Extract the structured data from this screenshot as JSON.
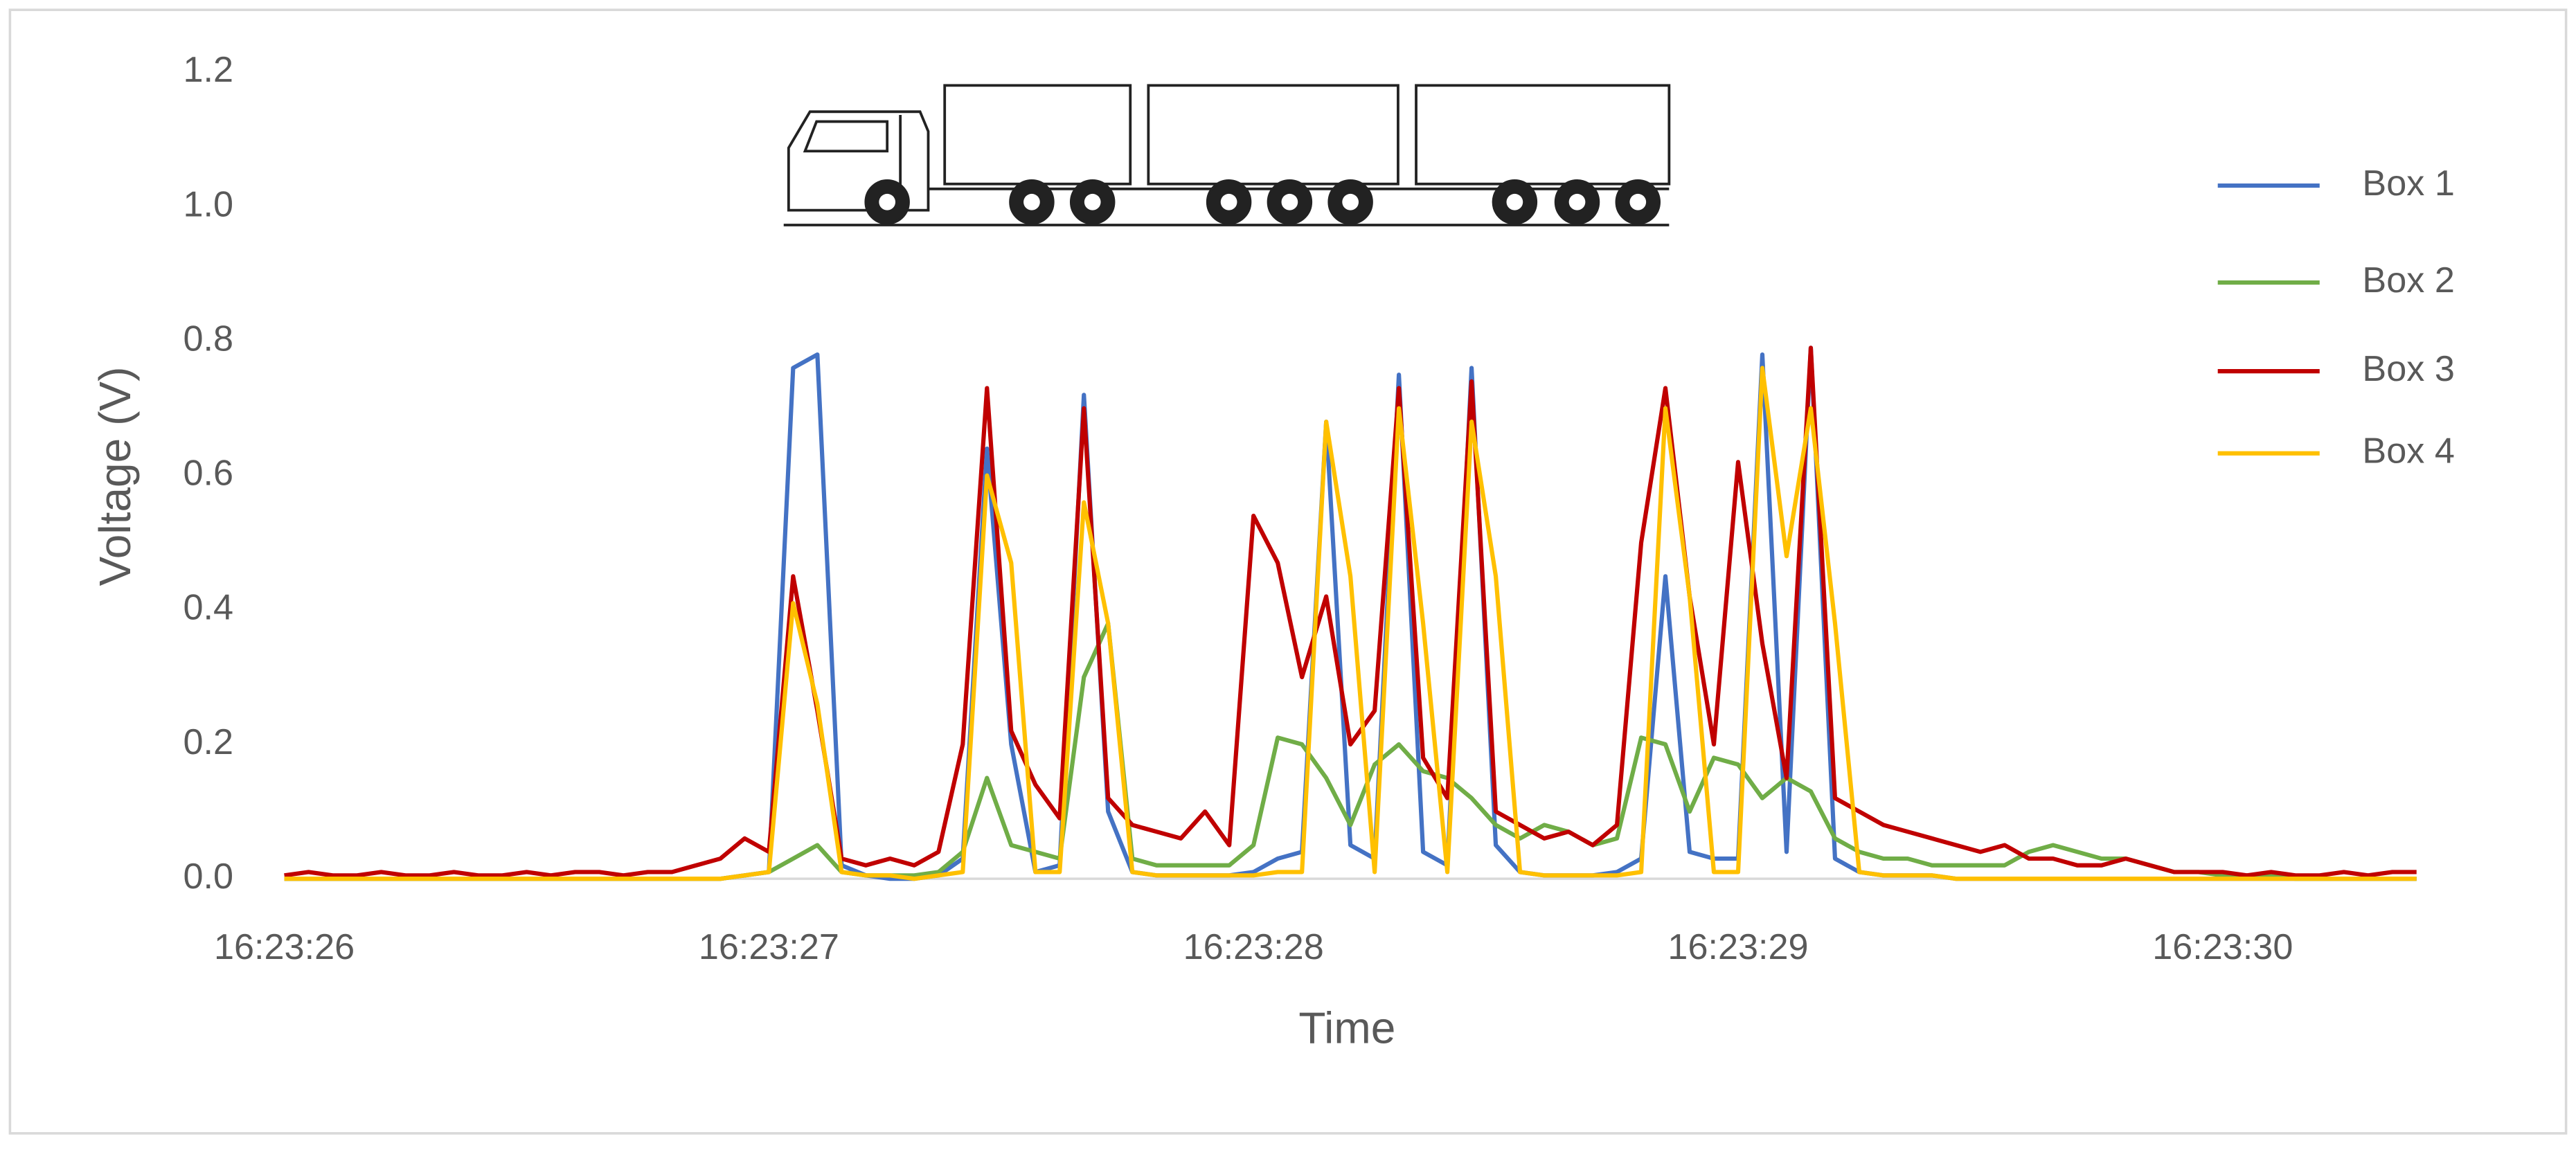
{
  "chart_data": {
    "type": "line",
    "x_label": "Time",
    "y_label": "Voltage (V)",
    "x": [
      59006,
      59006.05,
      59006.1,
      59006.15,
      59006.2,
      59006.25,
      59006.3,
      59006.35,
      59006.4,
      59006.45,
      59006.5,
      59006.55,
      59006.6,
      59006.65,
      59006.7,
      59006.75,
      59006.8,
      59006.85,
      59006.9,
      59006.95,
      59007,
      59007.05,
      59007.1,
      59007.15,
      59007.2,
      59007.25,
      59007.3,
      59007.35,
      59007.4,
      59007.45,
      59007.5,
      59007.55,
      59007.6,
      59007.65,
      59007.7,
      59007.75,
      59007.8,
      59007.85,
      59007.9,
      59007.95,
      59008,
      59008.05,
      59008.1,
      59008.15,
      59008.2,
      59008.25,
      59008.3,
      59008.35,
      59008.4,
      59008.45,
      59008.5,
      59008.55,
      59008.6,
      59008.65,
      59008.7,
      59008.75,
      59008.8,
      59008.85,
      59008.9,
      59008.95,
      59009,
      59009.05,
      59009.1,
      59009.15,
      59009.2,
      59009.25,
      59009.3,
      59009.35,
      59009.4,
      59009.45,
      59009.5,
      59009.55,
      59009.6,
      59009.65,
      59009.7,
      59009.75,
      59009.8,
      59009.85,
      59009.9,
      59009.95,
      59010,
      59010.05,
      59010.1,
      59010.15,
      59010.2,
      59010.25,
      59010.3,
      59010.35,
      59010.4
    ],
    "series": [
      {
        "name": "Box 1",
        "color": "#4472c4",
        "values": [
          0,
          0,
          0,
          0,
          0,
          0,
          0,
          0,
          0,
          0,
          0,
          0,
          0,
          0,
          0,
          0,
          0,
          0,
          0,
          0.005,
          0.01,
          0.76,
          0.78,
          0.02,
          0.005,
          0,
          0,
          0.005,
          0.03,
          0.64,
          0.2,
          0.01,
          0.02,
          0.72,
          0.1,
          0.01,
          0.005,
          0.005,
          0.005,
          0.005,
          0.01,
          0.03,
          0.04,
          0.68,
          0.05,
          0.03,
          0.75,
          0.04,
          0.02,
          0.76,
          0.05,
          0.01,
          0.005,
          0.005,
          0.005,
          0.01,
          0.03,
          0.45,
          0.04,
          0.03,
          0.03,
          0.78,
          0.04,
          0.79,
          0.03,
          0.01,
          0.005,
          0.005,
          0.005,
          0,
          0,
          0,
          0,
          0,
          0,
          0,
          0,
          0,
          0,
          0,
          0,
          0,
          0,
          0,
          0,
          0,
          0,
          0,
          0
        ]
      },
      {
        "name": "Box 2",
        "color": "#70ad47",
        "values": [
          0,
          0,
          0,
          0,
          0,
          0,
          0,
          0,
          0,
          0,
          0,
          0,
          0,
          0,
          0,
          0,
          0,
          0,
          0,
          0.005,
          0.01,
          0.03,
          0.05,
          0.01,
          0.005,
          0.005,
          0.005,
          0.01,
          0.04,
          0.15,
          0.05,
          0.04,
          0.03,
          0.3,
          0.38,
          0.03,
          0.02,
          0.02,
          0.02,
          0.02,
          0.05,
          0.21,
          0.2,
          0.15,
          0.08,
          0.17,
          0.2,
          0.16,
          0.15,
          0.12,
          0.08,
          0.06,
          0.08,
          0.07,
          0.05,
          0.06,
          0.21,
          0.2,
          0.1,
          0.18,
          0.17,
          0.12,
          0.15,
          0.13,
          0.06,
          0.04,
          0.03,
          0.03,
          0.02,
          0.02,
          0.02,
          0.02,
          0.04,
          0.05,
          0.04,
          0.03,
          0.03,
          0.02,
          0.01,
          0.01,
          0.005,
          0.005,
          0.005,
          0,
          0,
          0,
          0,
          0,
          0
        ]
      },
      {
        "name": "Box 3",
        "color": "#c00000",
        "values": [
          0.005,
          0.01,
          0.005,
          0.005,
          0.01,
          0.005,
          0.005,
          0.01,
          0.005,
          0.005,
          0.01,
          0.005,
          0.01,
          0.01,
          0.005,
          0.01,
          0.01,
          0.02,
          0.03,
          0.06,
          0.04,
          0.45,
          0.25,
          0.03,
          0.02,
          0.03,
          0.02,
          0.04,
          0.2,
          0.73,
          0.22,
          0.14,
          0.09,
          0.7,
          0.12,
          0.08,
          0.07,
          0.06,
          0.1,
          0.05,
          0.54,
          0.47,
          0.3,
          0.42,
          0.2,
          0.25,
          0.73,
          0.18,
          0.12,
          0.74,
          0.1,
          0.08,
          0.06,
          0.07,
          0.05,
          0.08,
          0.5,
          0.73,
          0.42,
          0.2,
          0.62,
          0.35,
          0.15,
          0.79,
          0.12,
          0.1,
          0.08,
          0.07,
          0.06,
          0.05,
          0.04,
          0.05,
          0.03,
          0.03,
          0.02,
          0.02,
          0.03,
          0.02,
          0.01,
          0.01,
          0.01,
          0.005,
          0.01,
          0.005,
          0.005,
          0.01,
          0.005,
          0.01,
          0.01
        ]
      },
      {
        "name": "Box 4",
        "color": "#ffc000",
        "values": [
          0,
          0,
          0,
          0,
          0,
          0,
          0,
          0,
          0,
          0,
          0,
          0,
          0,
          0,
          0,
          0,
          0,
          0,
          0,
          0.005,
          0.01,
          0.41,
          0.26,
          0.01,
          0.005,
          0.005,
          0,
          0.005,
          0.01,
          0.6,
          0.47,
          0.01,
          0.01,
          0.56,
          0.38,
          0.01,
          0.005,
          0.005,
          0.005,
          0.005,
          0.005,
          0.01,
          0.01,
          0.68,
          0.45,
          0.01,
          0.7,
          0.38,
          0.01,
          0.68,
          0.45,
          0.01,
          0.005,
          0.005,
          0.005,
          0.005,
          0.01,
          0.7,
          0.42,
          0.01,
          0.01,
          0.76,
          0.48,
          0.7,
          0.38,
          0.01,
          0.005,
          0.005,
          0.005,
          0,
          0,
          0,
          0,
          0,
          0,
          0,
          0,
          0,
          0,
          0,
          0,
          0,
          0,
          0,
          0,
          0,
          0,
          0,
          0
        ]
      }
    ],
    "xlim": [
      59006,
      59010.4
    ],
    "xticks": [
      {
        "value": 59006,
        "label": "16:23:26"
      },
      {
        "value": 59007,
        "label": "16:23:27"
      },
      {
        "value": 59008,
        "label": "16:23:28"
      },
      {
        "value": 59009,
        "label": "16:23:29"
      },
      {
        "value": 59010,
        "label": "16:23:30"
      }
    ],
    "ylim": [
      0,
      1.2
    ],
    "yticks": [
      {
        "value": 0,
        "label": "0.0"
      },
      0.2,
      0.4,
      0.6,
      0.8,
      {
        "value": 1,
        "label": "1.0"
      },
      1.2
    ],
    "grid": false,
    "legend": "right"
  }
}
